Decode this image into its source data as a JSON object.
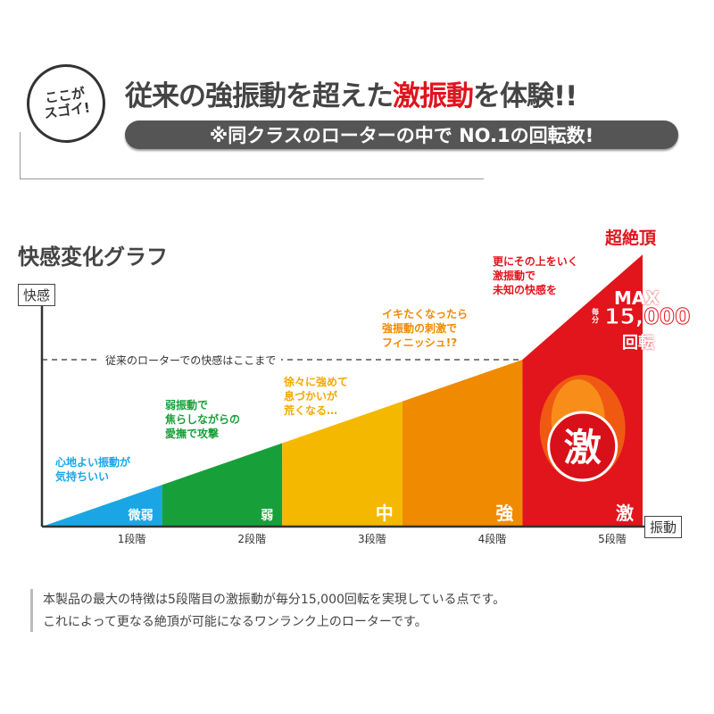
{
  "header": {
    "badge": "ここが\nスゴイ!",
    "headline_pre": "従来の強振動を超えた",
    "headline_red": "激振動",
    "headline_post": "を体験!!",
    "pill": "※同クラスのローターの中で NO.1の回転数!"
  },
  "chart_data": {
    "type": "area",
    "title": "快感変化グラフ",
    "ylabel": "快感",
    "xlabel": "振動",
    "categories": [
      "1段階",
      "2段階",
      "3段階",
      "4段階",
      "5段階"
    ],
    "stage_labels": [
      "微弱",
      "弱",
      "中",
      "強",
      "激"
    ],
    "values_relative_to_conventional_max": [
      0.25,
      0.5,
      0.75,
      1.0,
      1.63
    ],
    "colors": [
      "#1aa6e4",
      "#17a03a",
      "#f5b800",
      "#f08a00",
      "#e2141c"
    ],
    "reference_line": {
      "value": 1.0,
      "label": "従来のローターでの快感はここまで"
    },
    "annotations": [
      "心地よい振動が\n気持ちいい",
      "弱振動で\n焦らしながらの\n愛撫で攻撃",
      "徐々に強めて\n息づかいが\n荒くなる…",
      "イキたくなったら\n強振動の刺激で\nフィニッシュ!?",
      "更にその上をいく\n激振動で\n未知の快感を"
    ],
    "peak_label": "超絶頂",
    "max": {
      "label": "MAX",
      "unit_prefix": "毎分",
      "value": "15,000",
      "unit": "回転"
    }
  },
  "footer": {
    "line1": "本製品の最大の特徴は5段階目の激振動が毎分15,000回転を実現している点です。",
    "line2": "これによって更なる絶頂が可能になるワンランク上のローターです。"
  }
}
